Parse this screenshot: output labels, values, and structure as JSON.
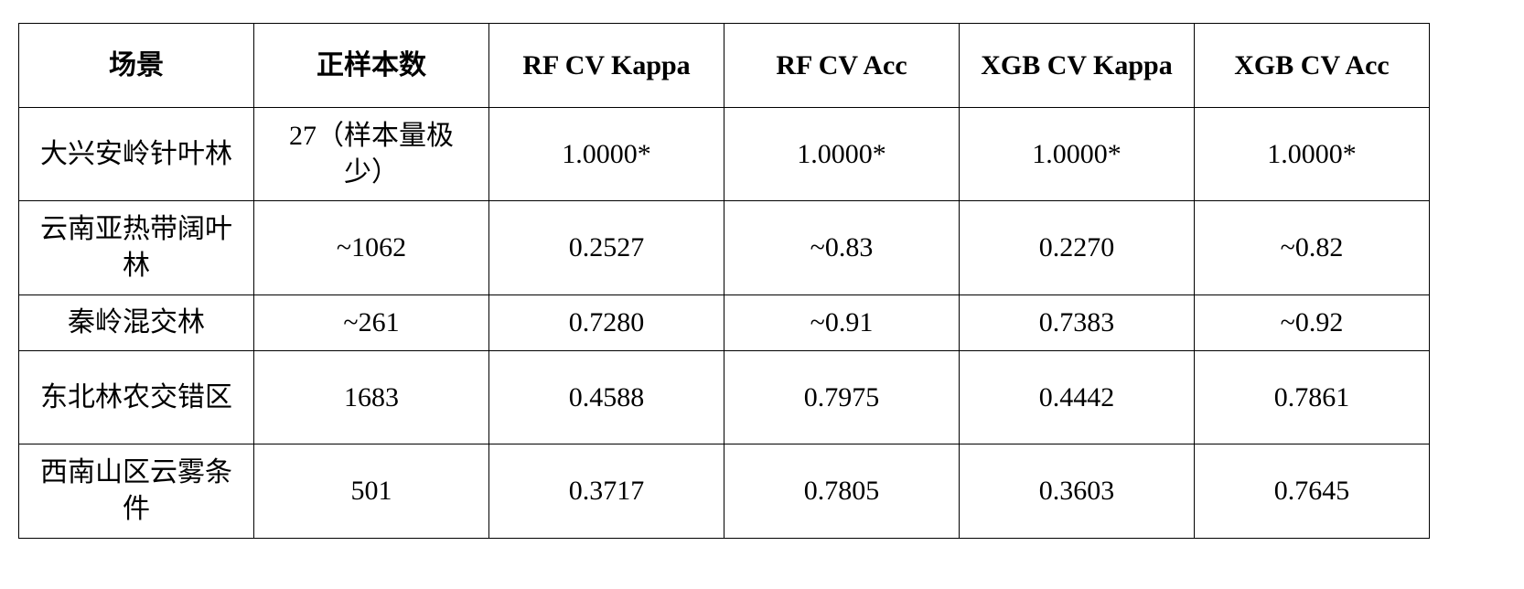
{
  "table": {
    "header": [
      "场景",
      "正样本数",
      "RF CV Kappa",
      "RF CV Acc",
      "XGB CV Kappa",
      "XGB CV Acc"
    ],
    "rows": [
      [
        "大兴安岭针叶林",
        "27（样本量极少）",
        "1.0000*",
        "1.0000*",
        "1.0000*",
        "1.0000*"
      ],
      [
        "云南亚热带阔叶林",
        "~1062",
        "0.2527",
        "~0.83",
        "0.2270",
        "~0.82"
      ],
      [
        "秦岭混交林",
        "~261",
        "0.7280",
        "~0.91",
        "0.7383",
        "~0.92"
      ],
      [
        "东北林农交错区",
        "1683",
        "0.4588",
        "0.7975",
        "0.4442",
        "0.7861"
      ],
      [
        "西南山区云雾条件",
        "501",
        "0.3717",
        "0.7805",
        "0.3603",
        "0.7645"
      ]
    ]
  }
}
